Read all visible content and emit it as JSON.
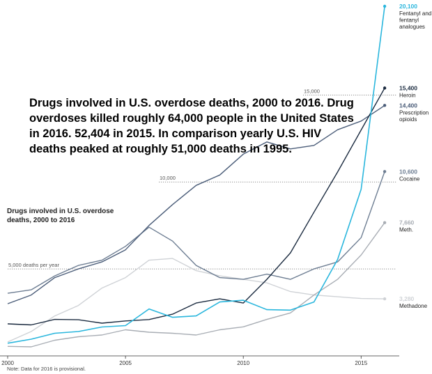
{
  "overlay_title": "Drugs involved in U.S. overdose deaths, 2000 to 2016. Drug overdoses killed roughly 64,000 people in the United States in 2016. 52,404 in 2015. In comparison yearly U.S. HIV deaths peaked at roughly 51,000 deaths in 1995.",
  "note": "Note: Data for 2016 is provisional.",
  "chart_data": {
    "type": "line",
    "title": "Drugs involved in U.S. overdose deaths, 2000 to 2016",
    "x": [
      2000,
      2001,
      2002,
      2003,
      2004,
      2005,
      2006,
      2007,
      2008,
      2009,
      2010,
      2011,
      2012,
      2013,
      2014,
      2015,
      2016
    ],
    "xlim": [
      2000,
      2016.5
    ],
    "ylim": [
      0,
      20100
    ],
    "x_ticks": [
      {
        "value": 2000,
        "label": "2000"
      },
      {
        "value": 2005,
        "label": "2005"
      },
      {
        "value": 2010,
        "label": "2010"
      },
      {
        "value": 2015,
        "label": "2015"
      }
    ],
    "gridlines": [
      {
        "value": 5000,
        "label": "5,000 deaths per year"
      },
      {
        "value": 10000,
        "label": "10,000"
      },
      {
        "value": 15000,
        "label": "15,000"
      }
    ],
    "series": [
      {
        "name": "Fentanyl and fentanyl analogues",
        "end_label": "20,100",
        "name_lines": [
          "Fentanyl and",
          "fentanyl",
          "analogues"
        ],
        "color": "#29b6dd",
        "values": [
          730,
          960,
          1300,
          1400,
          1660,
          1740,
          2700,
          2220,
          2300,
          3100,
          3200,
          2660,
          2630,
          3100,
          5540,
          9580,
          20100
        ]
      },
      {
        "name": "Heroin",
        "end_label": "15,400",
        "name_lines": [
          "Heroin"
        ],
        "color": "#1a2a3f",
        "values": [
          1840,
          1780,
          2100,
          2080,
          1880,
          2010,
          2090,
          2400,
          3040,
          3280,
          3040,
          4400,
          5920,
          8260,
          10570,
          12990,
          15400
        ]
      },
      {
        "name": "Prescription opioids",
        "end_label": "14,400",
        "name_lines": [
          "Prescription",
          "opioids"
        ],
        "color": "#4a5c78",
        "values": [
          3000,
          3500,
          4500,
          5000,
          5400,
          6100,
          7500,
          8700,
          9800,
          10400,
          11600,
          12300,
          11900,
          12100,
          13000,
          13500,
          14400
        ]
      },
      {
        "name": "Cocaine",
        "end_label": "10,600",
        "name_lines": [
          "Cocaine"
        ],
        "color": "#6d7d92",
        "values": [
          3600,
          3800,
          4600,
          5200,
          5500,
          6300,
          7400,
          6600,
          5200,
          4500,
          4400,
          4700,
          4400,
          5000,
          5400,
          6800,
          10600
        ]
      },
      {
        "name": "Meth.",
        "end_label": "7,660",
        "name_lines": [
          "Meth."
        ],
        "color": "#a8adb4",
        "values": [
          550,
          520,
          900,
          1100,
          1200,
          1500,
          1360,
          1300,
          1200,
          1500,
          1670,
          2100,
          2470,
          3500,
          4400,
          5800,
          7660
        ]
      },
      {
        "name": "Methadone",
        "end_label": "3,280",
        "name_lines": [
          "Methadone"
        ],
        "color": "#cfd2d6",
        "values": [
          800,
          1400,
          2300,
          2900,
          3900,
          4500,
          5500,
          5600,
          4900,
          4600,
          4400,
          4200,
          3700,
          3500,
          3400,
          3300,
          3280
        ]
      }
    ]
  }
}
